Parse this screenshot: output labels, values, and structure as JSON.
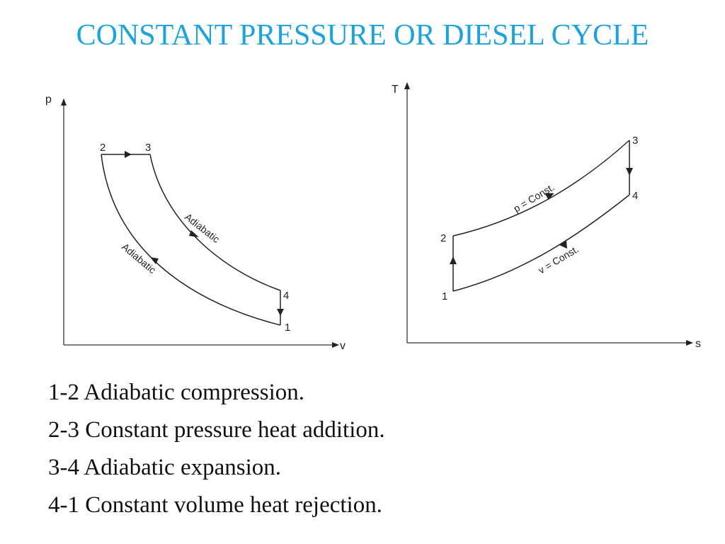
{
  "title": "CONSTANT PRESSURE OR DIESEL CYCLE",
  "pv_diagram": {
    "y_axis_label": "p",
    "x_axis_label": "v",
    "point_labels": {
      "p1": "1",
      "p2": "2",
      "p3": "3",
      "p4": "4"
    },
    "curve_labels": {
      "expansion": "Adiabatic",
      "compression": "Adiabatic"
    }
  },
  "ts_diagram": {
    "y_axis_label": "T",
    "x_axis_label": "s",
    "point_labels": {
      "p1": "1",
      "p2": "2",
      "p3": "3",
      "p4": "4"
    },
    "curve_labels": {
      "top": "p = Const.",
      "bottom": "v = Const."
    }
  },
  "processes": [
    "1-2 Adiabatic compression.",
    "2-3 Constant pressure heat addition.",
    "3-4 Adiabatic expansion.",
    "4-1 Constant volume heat rejection."
  ]
}
